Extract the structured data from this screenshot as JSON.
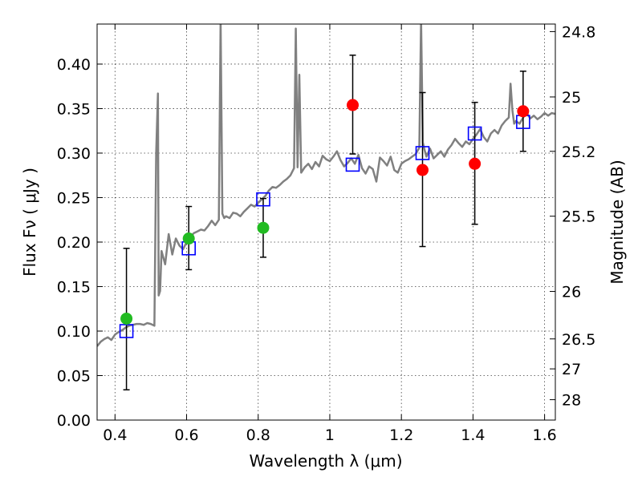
{
  "chart_data": {
    "type": "scatter",
    "xlabel": "Wavelength  λ (μm)",
    "ylabel": "Flux  Fν  ( μJy )",
    "y2label": "Magnitude (AB)",
    "xlim": [
      0.35,
      1.63
    ],
    "ylim": [
      0.0,
      0.445
    ],
    "xticks": [
      0.4,
      0.6,
      0.8,
      1.0,
      1.2,
      1.4,
      1.6
    ],
    "xtick_labels": [
      "0.4",
      "0.6",
      "0.8",
      "1",
      "1.2",
      "1.4",
      "1.6"
    ],
    "yticks": [
      0.0,
      0.05,
      0.1,
      0.15,
      0.2,
      0.25,
      0.3,
      0.35,
      0.4
    ],
    "ytick_labels": [
      "0.00",
      "0.05",
      "0.10",
      "0.15",
      "0.20",
      "0.25",
      "0.30",
      "0.35",
      "0.40"
    ],
    "y2_ticks": [
      {
        "mag": 24.8,
        "label": "24.8"
      },
      {
        "mag": 25.0,
        "label": "25"
      },
      {
        "mag": 25.2,
        "label": "25.2"
      },
      {
        "mag": 25.5,
        "label": "25.5"
      },
      {
        "mag": 26.0,
        "label": "26"
      },
      {
        "mag": 26.5,
        "label": "26.5"
      },
      {
        "mag": 27.0,
        "label": "27"
      },
      {
        "mag": 28.0,
        "label": "28"
      }
    ],
    "grid": true,
    "model_spectrum": {
      "color": "#808080",
      "x": [
        0.35,
        0.36,
        0.37,
        0.38,
        0.39,
        0.4,
        0.41,
        0.42,
        0.43,
        0.44,
        0.45,
        0.46,
        0.47,
        0.48,
        0.49,
        0.5,
        0.51,
        0.515,
        0.52,
        0.522,
        0.526,
        0.53,
        0.54,
        0.55,
        0.56,
        0.57,
        0.58,
        0.59,
        0.6,
        0.61,
        0.62,
        0.63,
        0.64,
        0.65,
        0.66,
        0.67,
        0.68,
        0.69,
        0.695,
        0.7,
        0.705,
        0.71,
        0.72,
        0.73,
        0.74,
        0.75,
        0.76,
        0.77,
        0.78,
        0.79,
        0.8,
        0.81,
        0.82,
        0.83,
        0.84,
        0.85,
        0.86,
        0.87,
        0.88,
        0.89,
        0.9,
        0.905,
        0.91,
        0.915,
        0.92,
        0.93,
        0.94,
        0.95,
        0.96,
        0.97,
        0.98,
        0.99,
        1.0,
        1.01,
        1.02,
        1.03,
        1.04,
        1.05,
        1.06,
        1.07,
        1.08,
        1.09,
        1.1,
        1.11,
        1.12,
        1.13,
        1.14,
        1.15,
        1.16,
        1.17,
        1.18,
        1.19,
        1.2,
        1.21,
        1.22,
        1.23,
        1.24,
        1.25,
        1.255,
        1.26,
        1.265,
        1.27,
        1.28,
        1.29,
        1.3,
        1.31,
        1.32,
        1.33,
        1.34,
        1.35,
        1.36,
        1.37,
        1.38,
        1.39,
        1.4,
        1.41,
        1.42,
        1.43,
        1.44,
        1.45,
        1.46,
        1.47,
        1.48,
        1.49,
        1.5,
        1.505,
        1.51,
        1.515,
        1.52,
        1.53,
        1.54,
        1.55,
        1.56,
        1.57,
        1.58,
        1.59,
        1.6,
        1.61,
        1.62,
        1.63
      ],
      "y": [
        0.083,
        0.088,
        0.091,
        0.093,
        0.09,
        0.096,
        0.099,
        0.101,
        0.104,
        0.106,
        0.107,
        0.108,
        0.108,
        0.107,
        0.109,
        0.108,
        0.106,
        0.3,
        0.367,
        0.14,
        0.145,
        0.19,
        0.175,
        0.209,
        0.186,
        0.204,
        0.196,
        0.192,
        0.2,
        0.205,
        0.21,
        0.212,
        0.214,
        0.213,
        0.218,
        0.224,
        0.219,
        0.225,
        0.45,
        0.232,
        0.227,
        0.229,
        0.227,
        0.233,
        0.232,
        0.229,
        0.234,
        0.238,
        0.242,
        0.24,
        0.244,
        0.248,
        0.252,
        0.258,
        0.262,
        0.261,
        0.264,
        0.268,
        0.271,
        0.275,
        0.283,
        0.44,
        0.284,
        0.388,
        0.278,
        0.284,
        0.288,
        0.282,
        0.29,
        0.285,
        0.297,
        0.293,
        0.291,
        0.296,
        0.302,
        0.292,
        0.285,
        0.289,
        0.294,
        0.288,
        0.298,
        0.283,
        0.277,
        0.285,
        0.282,
        0.268,
        0.295,
        0.291,
        0.286,
        0.296,
        0.281,
        0.278,
        0.288,
        0.291,
        0.293,
        0.296,
        0.299,
        0.306,
        0.45,
        0.312,
        0.303,
        0.296,
        0.305,
        0.294,
        0.298,
        0.302,
        0.296,
        0.304,
        0.309,
        0.316,
        0.311,
        0.307,
        0.313,
        0.31,
        0.316,
        0.321,
        0.327,
        0.318,
        0.313,
        0.322,
        0.326,
        0.322,
        0.331,
        0.336,
        0.34,
        0.378,
        0.348,
        0.333,
        0.336,
        0.333,
        0.34,
        0.345,
        0.339,
        0.342,
        0.338,
        0.341,
        0.345,
        0.342,
        0.345,
        0.344
      ]
    },
    "series": [
      {
        "marker": "open-square",
        "color": "#0000ff",
        "points": [
          {
            "x": 0.432,
            "y": 0.1
          },
          {
            "x": 0.606,
            "y": 0.193
          },
          {
            "x": 0.814,
            "y": 0.248
          },
          {
            "x": 1.064,
            "y": 0.287
          },
          {
            "x": 1.259,
            "y": 0.3
          },
          {
            "x": 1.405,
            "y": 0.322
          },
          {
            "x": 1.54,
            "y": 0.335
          }
        ]
      },
      {
        "marker": "filled-circle",
        "color": "#22bb22",
        "points": [
          {
            "x": 0.432,
            "y": 0.114,
            "err": [
              0.034,
              0.193
            ]
          },
          {
            "x": 0.606,
            "y": 0.204,
            "err": [
              0.169,
              0.24
            ]
          },
          {
            "x": 0.814,
            "y": 0.216,
            "err": [
              0.183,
              0.249
            ]
          }
        ]
      },
      {
        "marker": "filled-circle",
        "color": "#ff0000",
        "points": [
          {
            "x": 1.064,
            "y": 0.354,
            "err": [
              0.299,
              0.41
            ]
          },
          {
            "x": 1.259,
            "y": 0.281,
            "err": [
              0.195,
              0.368
            ]
          },
          {
            "x": 1.405,
            "y": 0.288,
            "err": [
              0.22,
              0.357
            ]
          },
          {
            "x": 1.54,
            "y": 0.347,
            "err": [
              0.302,
              0.392
            ]
          }
        ]
      }
    ]
  }
}
